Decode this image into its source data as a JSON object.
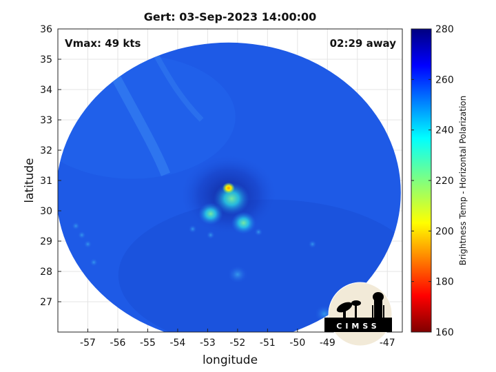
{
  "chart_data": {
    "type": "heatmap",
    "title": "Gert: 03-Sep-2023 14:00:00",
    "xlabel": "longitude",
    "ylabel": "latitude",
    "xlim": [
      -58,
      -46.5
    ],
    "ylim": [
      26,
      36
    ],
    "xticks": [
      -57,
      -56,
      -55,
      -54,
      -53,
      -52,
      -51,
      -50,
      -49,
      -48,
      -47
    ],
    "yticks": [
      27,
      28,
      29,
      30,
      31,
      32,
      33,
      34,
      35,
      36
    ],
    "grid": true,
    "annotations": {
      "vmax": "Vmax: 49 kts",
      "time_away": "02:29 away"
    },
    "storm_center": {
      "lon": -52.3,
      "lat": 30.7
    },
    "swath": {
      "center_lon": -52.3,
      "center_lat": 30.6,
      "radius_deg_lon": 5.75,
      "radius_deg_lat": 4.95
    },
    "colorbar": {
      "label": "Brightness Temp - Horizontal Polarization",
      "range": [
        160,
        280
      ],
      "ticks": [
        160,
        180,
        200,
        220,
        240,
        260,
        280
      ],
      "colormap": "jet"
    },
    "features": [
      {
        "name": "eyewall-core",
        "lon": -52.2,
        "lat": 30.4,
        "value": 230
      },
      {
        "name": "hot-spot",
        "lon": -52.3,
        "lat": 30.75,
        "value": 205
      },
      {
        "name": "rainband-sw",
        "lon": -52.9,
        "lat": 29.9,
        "value": 245
      },
      {
        "name": "rainband-s",
        "lon": -51.8,
        "lat": 29.6,
        "value": 245
      },
      {
        "name": "cell-south",
        "lon": -52.0,
        "lat": 27.9,
        "value": 252
      },
      {
        "name": "cell-se",
        "lon": -49.1,
        "lat": 26.6,
        "value": 252
      }
    ],
    "background_value": 262
  },
  "logo": {
    "text": "CIMSS"
  },
  "colors": {
    "swath_base": "#1e5ae6",
    "cold_core": "#12269e",
    "frame": "#222222"
  }
}
